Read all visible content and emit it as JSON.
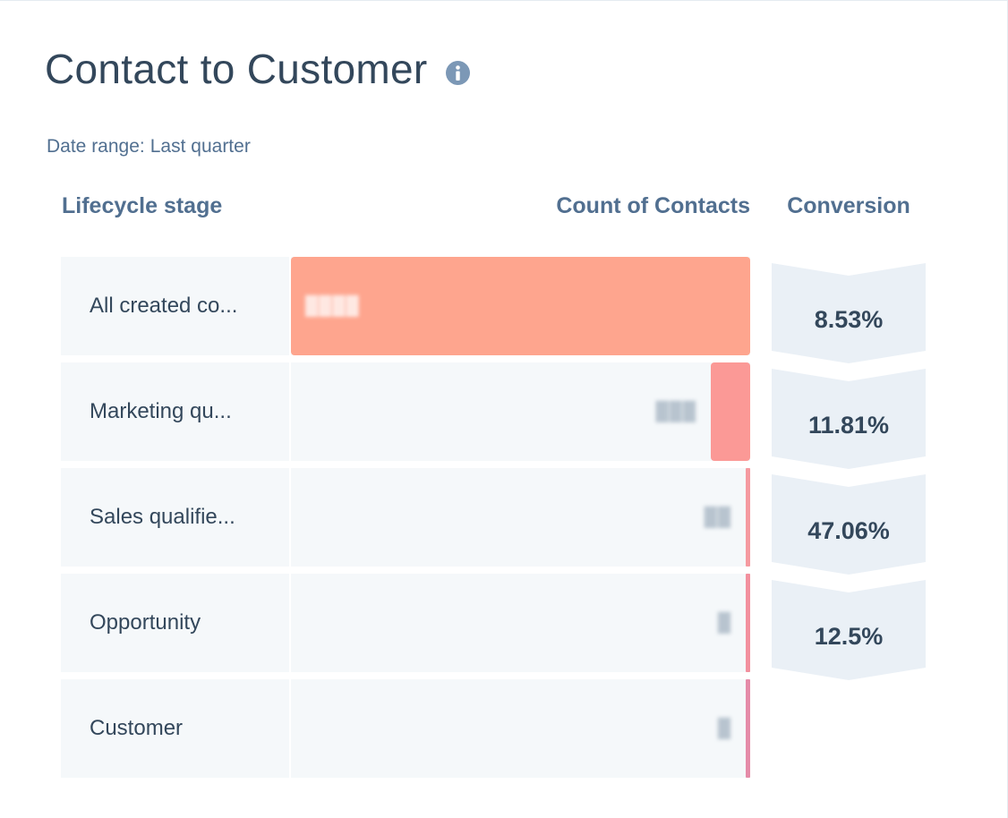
{
  "report": {
    "title": "Contact to Customer",
    "info_icon": "info-icon",
    "date_range_label": "Date range:",
    "date_range_value": "Last quarter"
  },
  "columns": {
    "stage": "Lifecycle stage",
    "count": "Count of Contacts",
    "conversion": "Conversion"
  },
  "chart_data": {
    "type": "bar",
    "categories": [
      "All created co...",
      "Marketing qu...",
      "Sales qualifie...",
      "Opportunity",
      "Customer"
    ],
    "values": [
      1000,
      85,
      10,
      5,
      0.6
    ],
    "conversions": [
      "8.53%",
      "11.81%",
      "47.06%",
      "12.5%"
    ],
    "count_labels": [
      "████",
      "███",
      "██",
      "█",
      "█"
    ],
    "xlabel": "Count of Contacts",
    "ylabel": "Lifecycle stage",
    "colors": [
      "#fea58e",
      "#fb9996",
      "#f59aa0",
      "#f2909e",
      "#e58ba8"
    ],
    "chevron_color": "#eaf0f6"
  }
}
